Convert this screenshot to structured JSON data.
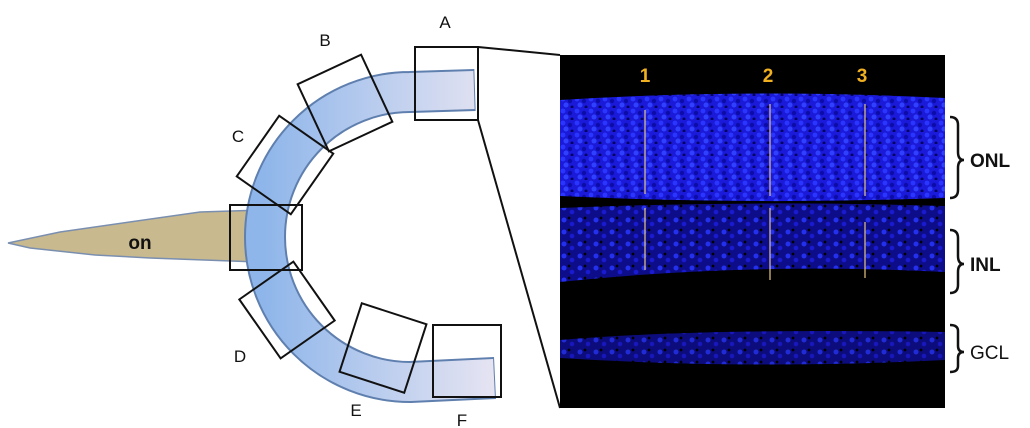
{
  "regions": [
    "A",
    "B",
    "C",
    "D",
    "E",
    "F"
  ],
  "optic_nerve": "on",
  "columns": [
    "1",
    "2",
    "3"
  ],
  "layers": [
    "ONL",
    "INL",
    "GCL"
  ]
}
